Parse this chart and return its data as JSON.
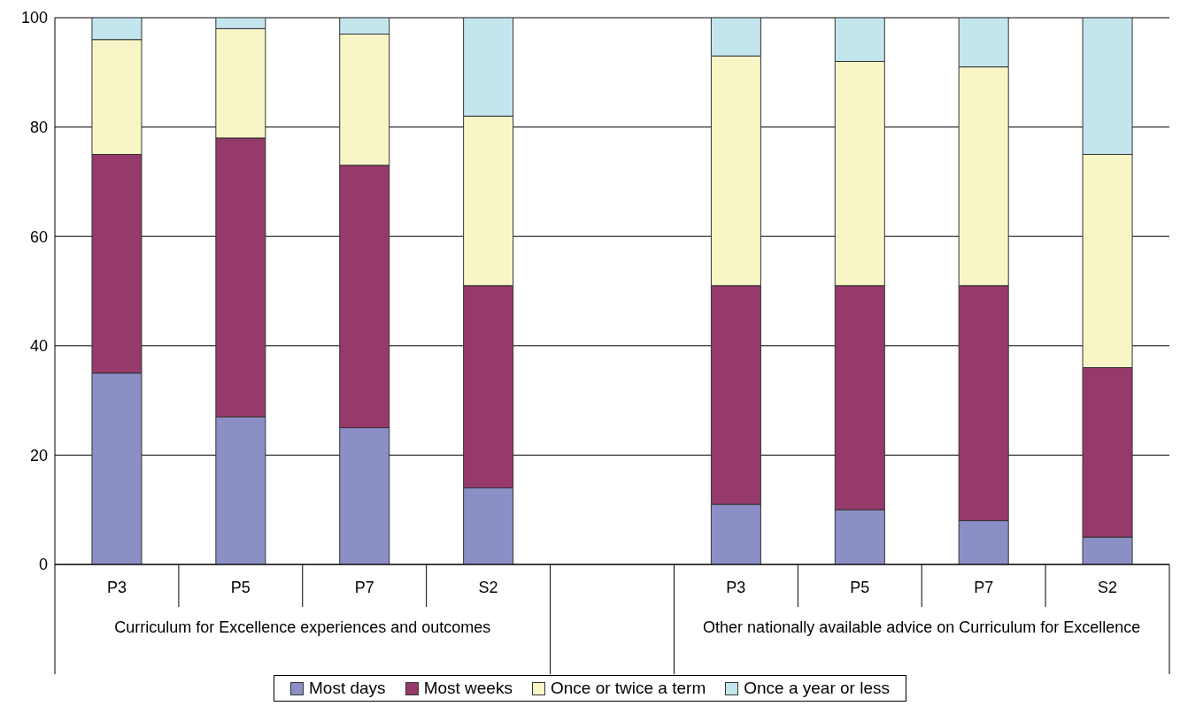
{
  "chart_data": {
    "type": "bar",
    "stacked": true,
    "categories": [
      "P3",
      "P5",
      "P7",
      "S2",
      null,
      "P3",
      "P5",
      "P7",
      "S2"
    ],
    "series": [
      {
        "name": "Most days",
        "color": "#8c8fc6",
        "values": [
          35,
          27,
          25,
          14,
          null,
          11,
          10,
          8,
          5
        ]
      },
      {
        "name": "Most weeks",
        "color": "#963a6c",
        "values": [
          40,
          51,
          48,
          37,
          null,
          40,
          41,
          43,
          31
        ]
      },
      {
        "name": "Once or twice a term",
        "color": "#f8f6c6",
        "values": [
          21,
          20,
          24,
          31,
          null,
          42,
          41,
          40,
          39
        ]
      },
      {
        "name": "Once a year or less",
        "color": "#c3e6ee",
        "values": [
          4,
          2,
          3,
          18,
          null,
          7,
          8,
          9,
          25
        ]
      }
    ],
    "annotations": [
      "Curriculum for Excellence experiences and outcomes",
      "Other nationally available advice on Curriculum for Excellence"
    ],
    "ylim": [
      0,
      100
    ],
    "yticks": [
      0,
      20,
      40,
      60,
      80,
      100
    ],
    "grid": "y",
    "legend": "bottom"
  }
}
